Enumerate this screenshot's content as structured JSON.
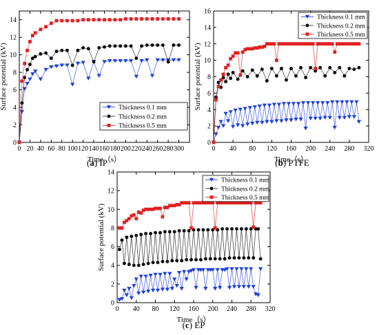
{
  "figure": {
    "series_colors": {
      "blue": "#1f3fe0",
      "black": "#111111",
      "red": "#e21f1f"
    }
  },
  "chart_data": [
    {
      "id": "ip",
      "type": "line",
      "caption_letter": "(a)",
      "caption_label": "IP",
      "xlabel": "Time（s）",
      "ylabel": "Surface potential (kV)",
      "xlim": [
        0,
        320
      ],
      "ylim": [
        0,
        15
      ],
      "xticks": [
        0,
        20,
        40,
        60,
        80,
        100,
        120,
        140,
        160,
        180,
        200,
        220,
        240,
        260,
        280,
        300
      ],
      "yticks": [
        0,
        2,
        4,
        6,
        8,
        10,
        12,
        14
      ],
      "legend_position": "lower-right",
      "series": [
        {
          "name": "Thickness 0.1 mm",
          "color": "#1f3fe0",
          "marker": "triangle-down",
          "x": [
            0,
            5,
            10,
            15,
            20,
            25,
            30,
            40,
            50,
            60,
            70,
            80,
            90,
            100,
            110,
            120,
            130,
            140,
            150,
            160,
            170,
            180,
            190,
            200,
            210,
            220,
            230,
            240,
            250,
            260,
            270,
            280,
            290,
            300
          ],
          "y": [
            0,
            3.5,
            6.1,
            6.7,
            7.2,
            7.8,
            8.1,
            7.2,
            8.3,
            8.6,
            8.7,
            8.8,
            8.8,
            6.6,
            9.0,
            9.1,
            7.3,
            9.2,
            7.6,
            9.2,
            9.3,
            9.3,
            9.3,
            9.3,
            9.3,
            7.5,
            9.3,
            9.4,
            7.6,
            9.4,
            9.4,
            9.4,
            9.4,
            9.4
          ]
        },
        {
          "name": "Thickness 0.2 mm",
          "color": "#111111",
          "marker": "circle",
          "x": [
            0,
            5,
            10,
            15,
            20,
            25,
            30,
            40,
            50,
            60,
            70,
            80,
            90,
            100,
            110,
            120,
            130,
            140,
            150,
            160,
            170,
            180,
            190,
            200,
            210,
            220,
            230,
            240,
            250,
            260,
            270,
            280,
            290,
            300
          ],
          "y": [
            0,
            4.5,
            7.4,
            8.3,
            8.9,
            9.6,
            9.8,
            10.1,
            10.2,
            9.6,
            10.4,
            10.5,
            10.5,
            8.8,
            10.5,
            10.8,
            10.7,
            9.2,
            10.8,
            10.9,
            11.0,
            11.0,
            11.0,
            11.0,
            11.0,
            9.6,
            11.0,
            11.1,
            11.1,
            11.1,
            11.1,
            9.2,
            11.1,
            11.1
          ]
        },
        {
          "name": "Thickness 0.5 mm",
          "color": "#e21f1f",
          "marker": "square",
          "x": [
            0,
            5,
            10,
            15,
            20,
            25,
            30,
            40,
            50,
            60,
            70,
            80,
            90,
            100,
            110,
            120,
            130,
            140,
            150,
            160,
            170,
            180,
            190,
            200,
            210,
            220,
            230,
            240,
            250,
            260,
            270,
            280,
            290,
            300
          ],
          "y": [
            0,
            7.0,
            9.0,
            10.5,
            11.5,
            12.2,
            12.5,
            12.9,
            13.2,
            13.6,
            13.9,
            13.9,
            13.9,
            13.9,
            13.9,
            14.0,
            14.0,
            14.0,
            14.0,
            14.0,
            14.0,
            14.0,
            14.0,
            14.1,
            14.1,
            14.1,
            14.1,
            14.1,
            14.1,
            14.1,
            14.1,
            14.1,
            14.1,
            14.1
          ]
        }
      ]
    },
    {
      "id": "ptfe",
      "type": "line",
      "caption_letter": "(b)",
      "caption_label": "PTFE",
      "xlabel": "Time（s）",
      "ylabel": "Surface potential (kV)",
      "xlim": [
        0,
        320
      ],
      "ylim": [
        0,
        16
      ],
      "xticks": [
        0,
        40,
        80,
        120,
        160,
        200,
        240,
        280,
        320
      ],
      "yticks": [
        0,
        2,
        4,
        6,
        8,
        10,
        12,
        14,
        16
      ],
      "legend_position": "top-right",
      "series": [
        {
          "name": "Thickness 0.1 mm",
          "color": "#1f3fe0",
          "marker": "triangle-down",
          "x": [
            0,
            5,
            10,
            15,
            20,
            25,
            30,
            35,
            40,
            45,
            50,
            55,
            60,
            65,
            70,
            75,
            80,
            85,
            90,
            95,
            100,
            105,
            110,
            115,
            120,
            125,
            130,
            135,
            140,
            145,
            150,
            155,
            160,
            165,
            170,
            175,
            180,
            185,
            190,
            195,
            200,
            205,
            210,
            215,
            220,
            225,
            230,
            235,
            240,
            245,
            250,
            255,
            260,
            265,
            270,
            275,
            280,
            285,
            290,
            295,
            300
          ],
          "y": [
            0,
            1.0,
            1.8,
            2.5,
            2.0,
            3.5,
            2.6,
            3.7,
            1.9,
            3.9,
            2.1,
            4.0,
            2.0,
            4.1,
            2.2,
            4.2,
            2.3,
            4.3,
            2.4,
            4.4,
            2.4,
            4.5,
            2.5,
            4.5,
            2.5,
            4.6,
            2.6,
            4.6,
            2.6,
            4.7,
            2.7,
            4.7,
            2.7,
            4.7,
            2.8,
            4.7,
            2.8,
            4.8,
            1.7,
            4.8,
            2.9,
            4.8,
            2.9,
            4.8,
            2.9,
            4.8,
            3.0,
            4.8,
            3.0,
            4.9,
            1.8,
            4.9,
            3.0,
            4.9,
            3.0,
            4.9,
            3.1,
            4.9,
            3.1,
            4.9,
            2.5
          ]
        },
        {
          "name": "Thickness 0.2 mm",
          "color": "#111111",
          "marker": "circle",
          "x": [
            0,
            5,
            10,
            15,
            20,
            25,
            30,
            35,
            40,
            50,
            60,
            70,
            80,
            90,
            100,
            110,
            120,
            130,
            140,
            150,
            160,
            170,
            180,
            190,
            200,
            210,
            220,
            230,
            240,
            250,
            260,
            270,
            280,
            290,
            300
          ],
          "y": [
            0,
            5.5,
            7.3,
            6.7,
            7.9,
            7.4,
            8.3,
            7.8,
            8.5,
            7.7,
            8.7,
            8.0,
            8.8,
            8.1,
            8.9,
            7.5,
            9.0,
            8.1,
            9.0,
            7.6,
            9.0,
            8.1,
            9.1,
            7.9,
            9.1,
            8.7,
            9.1,
            8.1,
            9.1,
            8.5,
            9.1,
            8.1,
            9.0,
            8.9,
            9.1
          ]
        },
        {
          "name": "Thickness 0.5 mm",
          "color": "#e21f1f",
          "marker": "square",
          "x": [
            0,
            5,
            10,
            15,
            20,
            25,
            30,
            35,
            40,
            45,
            50,
            55,
            60,
            65,
            70,
            75,
            80,
            85,
            90,
            95,
            100,
            105,
            110,
            115,
            120,
            125,
            130,
            135,
            140,
            145,
            150,
            155,
            160,
            165,
            170,
            175,
            180,
            185,
            190,
            195,
            200,
            205,
            210,
            215,
            220,
            225,
            230,
            235,
            240,
            245,
            250,
            255,
            260,
            265,
            270,
            275,
            280,
            285,
            290,
            295,
            300
          ],
          "y": [
            0,
            5.2,
            6.8,
            7.6,
            8.3,
            9.1,
            9.4,
            10.2,
            10.5,
            10.9,
            10.9,
            8.2,
            11.0,
            11.3,
            11.4,
            11.4,
            11.4,
            11.5,
            11.5,
            11.6,
            11.6,
            11.7,
            12.0,
            12.0,
            12.0,
            12.0,
            10.0,
            12.0,
            12.0,
            12.0,
            12.0,
            12.0,
            12.0,
            12.0,
            12.0,
            12.0,
            12.0,
            12.0,
            12.0,
            12.0,
            12.0,
            12.0,
            9.0,
            12.0,
            12.0,
            12.0,
            12.0,
            12.0,
            12.0,
            12.0,
            11.0,
            12.0,
            12.0,
            12.0,
            12.0,
            12.0,
            12.0,
            12.0,
            12.0,
            12.0,
            12.0
          ]
        }
      ]
    },
    {
      "id": "ep",
      "type": "line",
      "caption_letter": "(c)",
      "caption_label": "EP",
      "xlabel": "Time（s）",
      "ylabel": "Surface potential (kV)",
      "xlim": [
        0,
        320
      ],
      "ylim": [
        0,
        14
      ],
      "xticks": [
        0,
        40,
        80,
        120,
        160,
        200,
        240,
        280,
        320
      ],
      "yticks": [
        0,
        2,
        4,
        6,
        8,
        10,
        12,
        14
      ],
      "legend_position": "top-right",
      "series": [
        {
          "name": "Thickness 0.1 mm",
          "color": "#1f3fe0",
          "marker": "triangle-down",
          "x": [
            5,
            10,
            15,
            20,
            25,
            30,
            35,
            40,
            45,
            50,
            55,
            60,
            65,
            70,
            75,
            80,
            85,
            90,
            95,
            100,
            105,
            110,
            115,
            120,
            125,
            130,
            135,
            140,
            145,
            150,
            155,
            160,
            165,
            170,
            175,
            180,
            185,
            190,
            195,
            200,
            205,
            210,
            215,
            220,
            225,
            230,
            235,
            240,
            245,
            250,
            255,
            260,
            265,
            270,
            275,
            280,
            285,
            290,
            295,
            300
          ],
          "y": [
            0.3,
            0.4,
            1.3,
            0.8,
            1.5,
            0.5,
            1.8,
            2.5,
            1.0,
            2.8,
            1.1,
            2.8,
            1.2,
            2.9,
            1.3,
            3.0,
            1.3,
            3.0,
            1.4,
            3.1,
            1.4,
            3.1,
            1.5,
            2.5,
            1.8,
            3.2,
            1.5,
            3.3,
            2.5,
            3.3,
            3.4,
            3.5,
            1.6,
            3.5,
            3.5,
            3.5,
            1.5,
            3.5,
            3.5,
            3.5,
            1.5,
            3.5,
            1.6,
            3.5,
            3.5,
            3.6,
            1.6,
            3.6,
            1.7,
            3.6,
            1.7,
            3.6,
            1.7,
            3.6,
            1.7,
            3.6,
            1.7,
            0.9,
            0.8,
            3.6
          ]
        },
        {
          "name": "Thickness 0.2 mm",
          "color": "#111111",
          "marker": "circle",
          "x": [
            5,
            10,
            15,
            20,
            25,
            30,
            35,
            40,
            45,
            50,
            55,
            60,
            65,
            70,
            75,
            80,
            85,
            90,
            95,
            100,
            105,
            110,
            115,
            120,
            125,
            130,
            135,
            140,
            145,
            150,
            155,
            160,
            165,
            170,
            175,
            180,
            185,
            190,
            195,
            200,
            205,
            210,
            215,
            220,
            225,
            230,
            235,
            240,
            245,
            250,
            255,
            260,
            265,
            270,
            275,
            280,
            285,
            290,
            295,
            300
          ],
          "y": [
            5.7,
            6.7,
            4.2,
            7.0,
            4.1,
            7.1,
            4.0,
            7.2,
            4.0,
            7.3,
            4.1,
            7.4,
            4.2,
            7.4,
            4.3,
            7.5,
            4.3,
            7.5,
            4.4,
            7.6,
            4.4,
            7.6,
            4.5,
            7.6,
            4.5,
            7.7,
            4.5,
            7.7,
            4.6,
            7.7,
            4.6,
            7.8,
            4.6,
            7.8,
            4.6,
            7.8,
            4.7,
            7.8,
            4.7,
            7.8,
            4.7,
            7.8,
            4.7,
            7.9,
            4.7,
            7.9,
            4.8,
            7.9,
            4.8,
            7.9,
            4.8,
            7.9,
            4.8,
            7.9,
            4.8,
            7.9,
            4.8,
            7.9,
            7.9,
            4.7
          ]
        },
        {
          "name": "Thickness 0.5 mm",
          "color": "#e21f1f",
          "marker": "square",
          "x": [
            5,
            10,
            15,
            20,
            25,
            30,
            35,
            40,
            45,
            50,
            55,
            60,
            65,
            70,
            75,
            80,
            85,
            90,
            95,
            100,
            105,
            110,
            115,
            120,
            125,
            130,
            135,
            140,
            145,
            150,
            155,
            160,
            165,
            170,
            175,
            180,
            185,
            190,
            195,
            200,
            205,
            210,
            215,
            220,
            225,
            230,
            235,
            240,
            245,
            250,
            255,
            260,
            265,
            270,
            275,
            280,
            285,
            290,
            295,
            300
          ],
          "y": [
            8.0,
            8.0,
            8.6,
            8.8,
            9.0,
            9.3,
            9.4,
            9.0,
            9.7,
            9.6,
            9.9,
            10.0,
            10.0,
            10.0,
            10.0,
            10.1,
            10.1,
            10.1,
            9.2,
            10.2,
            10.2,
            10.4,
            10.4,
            10.4,
            10.5,
            10.5,
            10.7,
            10.7,
            10.7,
            10.7,
            8.0,
            10.7,
            10.7,
            10.7,
            10.7,
            10.7,
            10.7,
            10.7,
            10.7,
            10.7,
            8.0,
            10.7,
            10.7,
            10.7,
            10.7,
            10.7,
            10.7,
            10.7,
            10.7,
            10.7,
            10.7,
            10.7,
            10.7,
            10.7,
            10.7,
            10.7,
            8.1,
            10.7,
            10.7,
            10.7
          ]
        }
      ]
    }
  ]
}
